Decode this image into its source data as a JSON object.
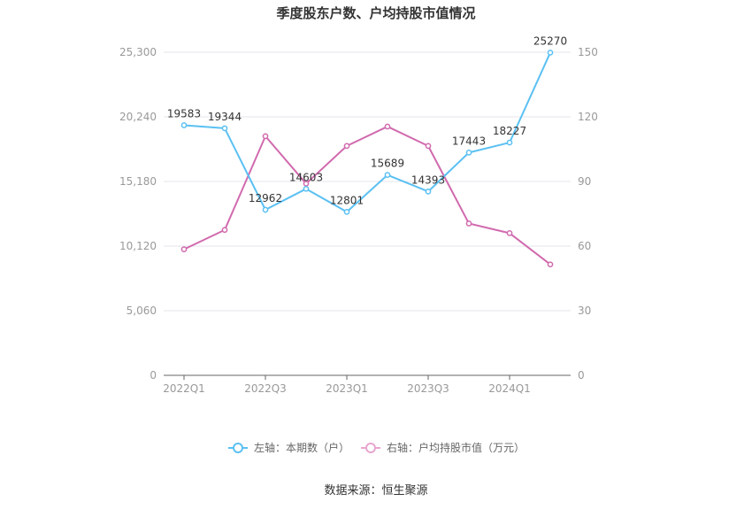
{
  "chart_data": {
    "type": "line",
    "title": "季度股东户数、户均持股市值情况",
    "x": [
      "2022Q1",
      "2022Q2",
      "2022Q3",
      "2022Q4",
      "2023Q1",
      "2023Q2",
      "2023Q3",
      "2023Q4",
      "2024Q1",
      "2024Q2"
    ],
    "x_tick_labels": [
      "2022Q1",
      "2022Q3",
      "2023Q1",
      "2023Q3",
      "2024Q1"
    ],
    "left_axis": {
      "ylim": [
        0,
        25300
      ],
      "ticks": [
        "0",
        "5,060",
        "10,120",
        "15,180",
        "20,240",
        "25,300"
      ]
    },
    "right_axis": {
      "ylim": [
        0,
        150
      ],
      "ticks": [
        "0",
        "30",
        "60",
        "90",
        "120",
        "150"
      ]
    },
    "series": [
      {
        "name": "左轴：本期数（户）",
        "axis": "left",
        "color": "#5bc0f2",
        "values": [
          19583,
          19344,
          12962,
          14603,
          12801,
          15689,
          14393,
          17443,
          18227,
          25270
        ],
        "data_labels": [
          "19583",
          "19344",
          "12962",
          "14603",
          "12801",
          "15689",
          "14393",
          "17443",
          "18227",
          "25270"
        ]
      },
      {
        "name": "右轴：户均持股市值（万元）",
        "axis": "right",
        "color": "#d16aae",
        "values": [
          58.5,
          67.5,
          111,
          89,
          106.5,
          115.5,
          106.5,
          70.5,
          66,
          51.5
        ]
      }
    ],
    "grid": true,
    "legend_position": "bottom"
  },
  "source": "数据来源：恒生聚源"
}
